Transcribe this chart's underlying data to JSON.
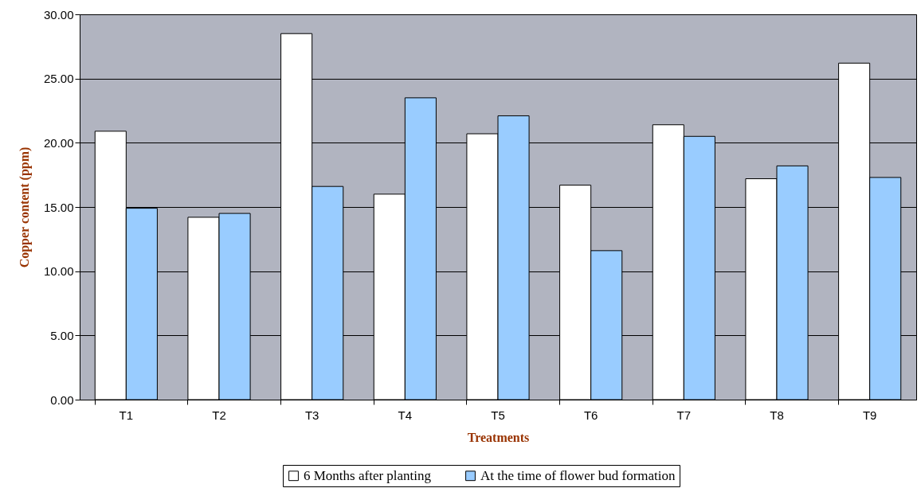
{
  "chart_data": {
    "type": "bar",
    "xlabel": "Treatments",
    "ylabel": "Copper content (ppm)",
    "categories": [
      "T1",
      "T2",
      "T3",
      "T4",
      "T5",
      "T6",
      "T7",
      "T8",
      "T9"
    ],
    "series": [
      {
        "name": "6 Months after planting",
        "color": "#ffffff",
        "values": [
          20.9,
          14.2,
          28.5,
          16.0,
          20.7,
          16.7,
          21.4,
          17.2,
          26.2
        ]
      },
      {
        "name": "At the time of flower bud formation",
        "color": "#99ccff",
        "values": [
          14.9,
          14.5,
          16.6,
          23.5,
          22.1,
          11.6,
          20.5,
          18.2,
          17.3
        ]
      }
    ],
    "ylim": [
      0,
      30
    ],
    "yticks": [
      {
        "value": 0,
        "label": "0.00"
      },
      {
        "value": 5,
        "label": "5.00"
      },
      {
        "value": 10,
        "label": "10.00"
      },
      {
        "value": 15,
        "label": "15.00"
      },
      {
        "value": 20,
        "label": "20.00"
      },
      {
        "value": 25,
        "label": "25.00"
      },
      {
        "value": 30,
        "label": "30.00"
      }
    ],
    "grid": "y",
    "legend": "bottom"
  }
}
